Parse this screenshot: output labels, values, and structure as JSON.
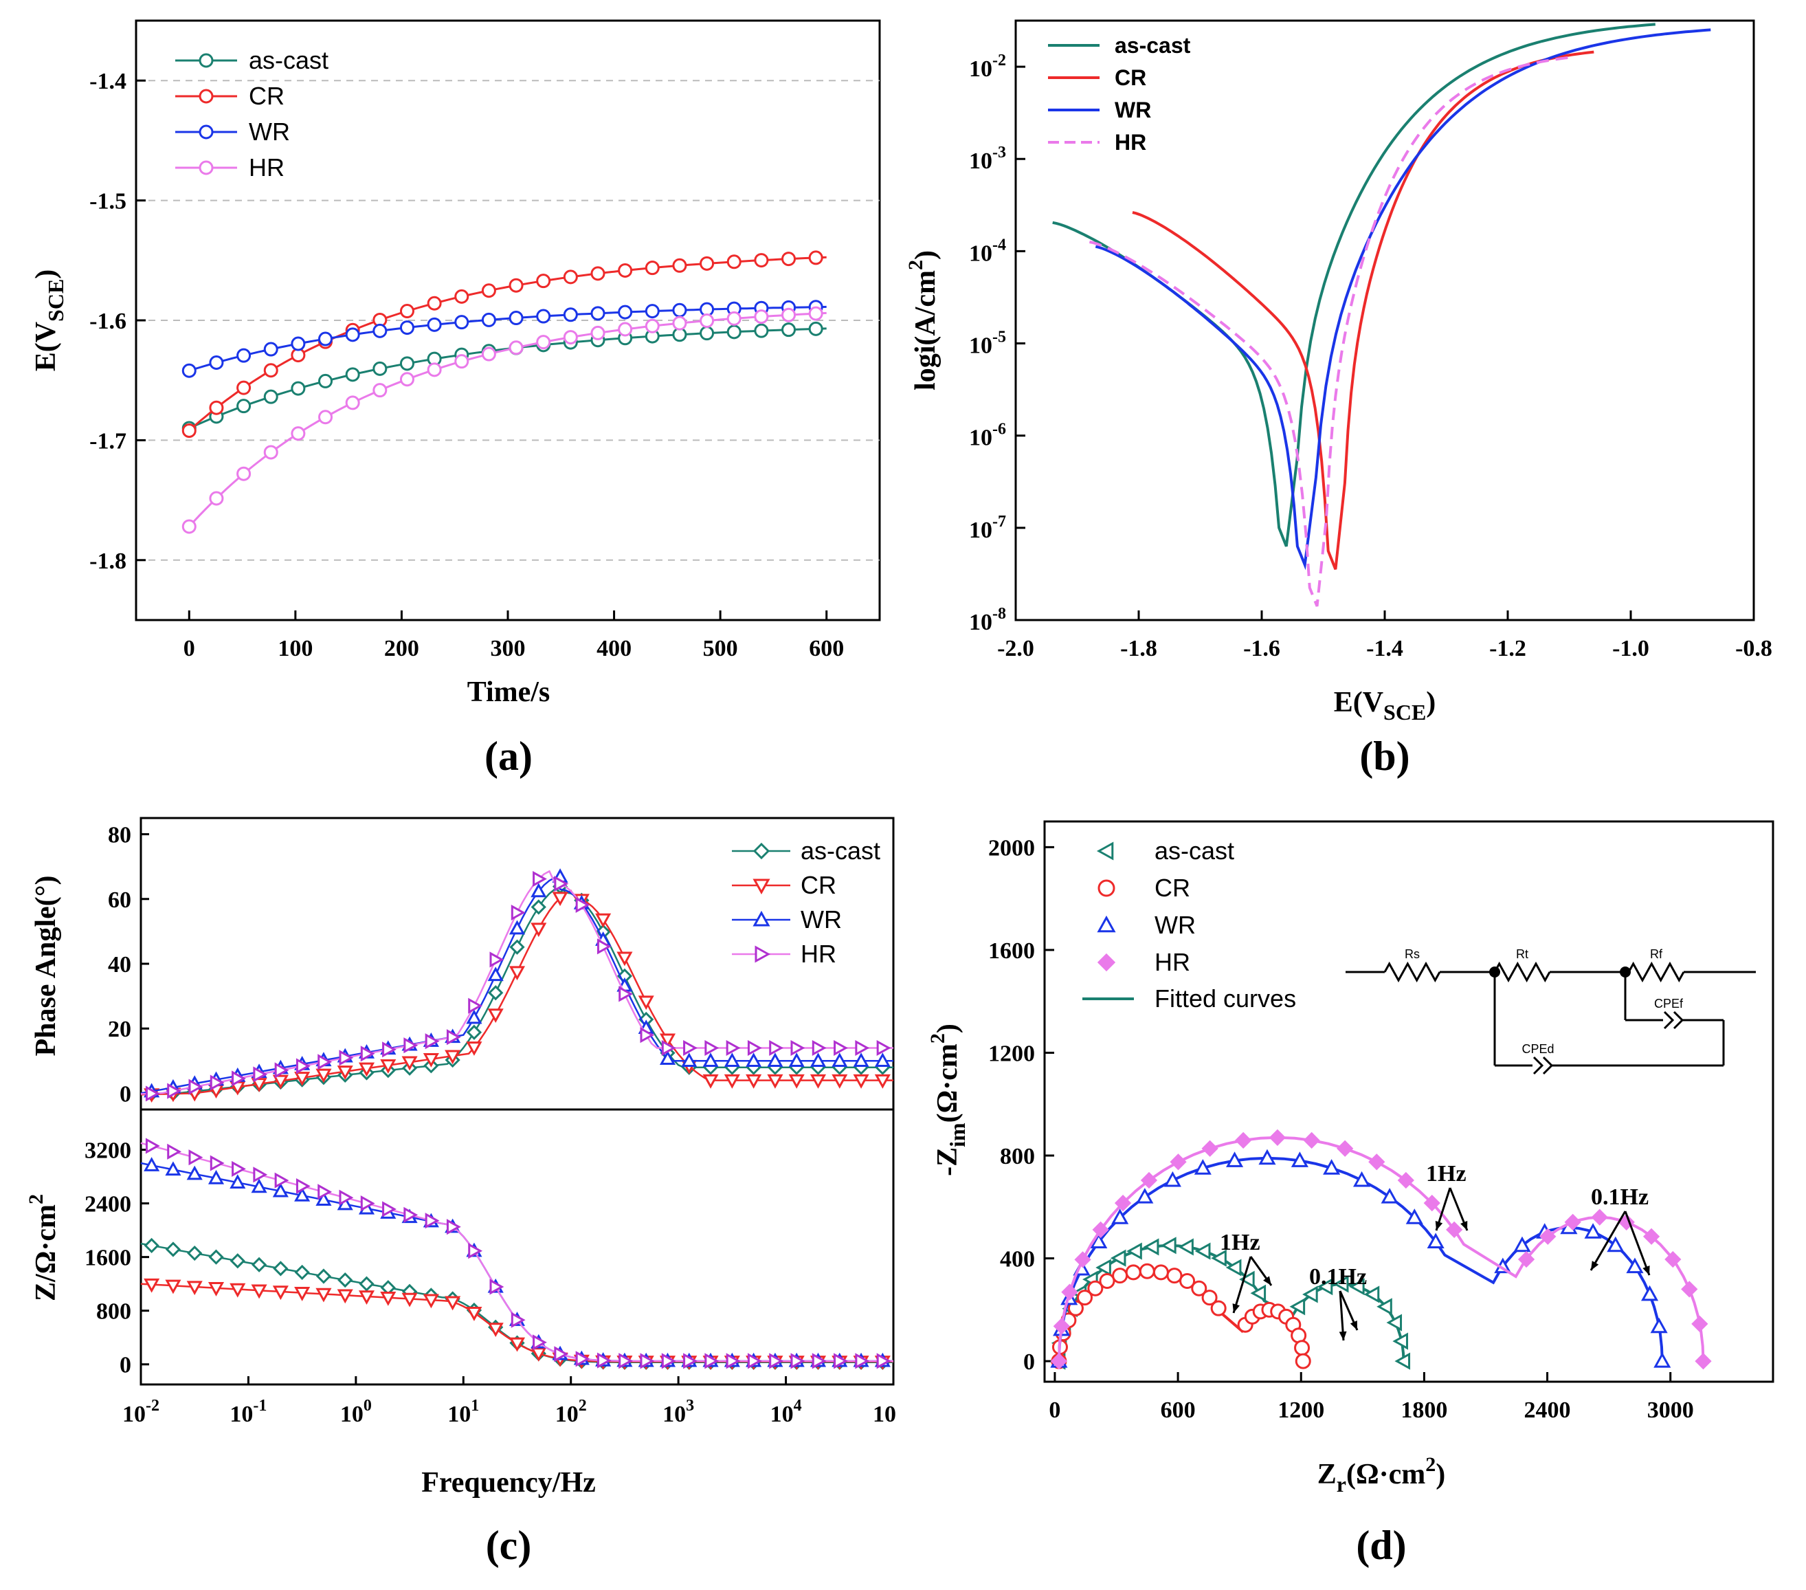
{
  "colors": {
    "ascast": "#1a8070",
    "cr": "#ee2a2a",
    "wr": "#1a35e8",
    "hr": "#ea7aea",
    "hrc": "#b030d0"
  },
  "chart_data": [
    {
      "id": "a",
      "type": "line",
      "panel_label": "(a)",
      "xlabel": "Time/s",
      "ylabel": "E(V",
      "ylabel_sub": "SCE",
      "ylabel_end": ")",
      "xlim": [
        -50,
        650
      ],
      "ylim": [
        -1.85,
        -1.35
      ],
      "xticks": [
        0,
        100,
        200,
        300,
        400,
        500,
        600
      ],
      "xtick_labels": [
        "0",
        "100",
        "200",
        "300",
        "400",
        "500",
        "600"
      ],
      "yticks": [
        -1.4,
        -1.5,
        -1.6,
        -1.7,
        -1.8
      ],
      "ytick_labels": [
        "-1.4",
        "-1.5",
        "-1.6",
        "-1.7",
        "-1.8"
      ],
      "grid": "dashed horizontal",
      "legend": "top-left",
      "series": [
        {
          "name": "as-cast",
          "start": -1.69,
          "end": -1.601,
          "tau": 220
        },
        {
          "name": "CR",
          "start": -1.692,
          "end": -1.541,
          "tau": 190
        },
        {
          "name": "WR",
          "start": -1.642,
          "end": -1.586,
          "tau": 200
        },
        {
          "name": "HR",
          "start": -1.772,
          "end": -1.586,
          "tau": 190
        }
      ]
    },
    {
      "id": "b",
      "type": "line",
      "panel_label": "(b)",
      "xlabel": "E(V",
      "xlabel_sub": "SCE",
      "xlabel_end": ")",
      "ylabel": "logi(A/cm",
      "ylabel_sup": "2",
      "ylabel_end": ")",
      "xlim": [
        -2.0,
        -0.8
      ],
      "ylim": [
        -8,
        -1.5
      ],
      "xticks": [
        -2.0,
        -1.8,
        -1.6,
        -1.4,
        -1.2,
        -1.0,
        -0.8
      ],
      "xtick_labels": [
        "-2.0",
        "-1.8",
        "-1.6",
        "-1.4",
        "-1.2",
        "-1.0",
        "-0.8"
      ],
      "yticks": [
        -2,
        -3,
        -4,
        -5,
        -6,
        -7,
        -8
      ],
      "ytick_base": "10",
      "ytick_exps": [
        "-2",
        "-3",
        "-4",
        "-5",
        "-6",
        "-7",
        "-8"
      ],
      "legend": "top-left",
      "series": [
        {
          "name": "as-cast",
          "x_start": -1.94,
          "ecorr": -1.56,
          "x_end": -0.96,
          "y_start": -3.69,
          "y_min": -7.2,
          "y_end": -1.54
        },
        {
          "name": "CR",
          "x_start": -1.81,
          "ecorr": -1.48,
          "x_end": -1.06,
          "y_start": -3.58,
          "y_min": -7.45,
          "y_end": -1.84
        },
        {
          "name": "WR",
          "x_start": -1.87,
          "ecorr": -1.53,
          "x_end": -0.87,
          "y_start": -3.95,
          "y_min": -7.4,
          "y_end": -1.6
        },
        {
          "name": "HR",
          "x_start": -1.88,
          "ecorr": -1.51,
          "x_end": -1.1,
          "y_start": -3.9,
          "y_min": -7.85,
          "y_end": -1.9
        }
      ]
    },
    {
      "id": "c",
      "type": "scatter",
      "panel_label": "(c)",
      "xlabel": "Frequency/Hz",
      "xlim": [
        -2,
        5
      ],
      "xticks": [
        -2,
        -1,
        0,
        1,
        2,
        3,
        4,
        5
      ],
      "xtick_base": "10",
      "xtick_exps": [
        "-2",
        "-1",
        "0",
        "1",
        "2",
        "3",
        "4",
        ""
      ],
      "xtick_last": "10",
      "top": {
        "ylabel": "Phase Angle(°)",
        "ylim": [
          -5,
          85
        ],
        "yticks": [
          0,
          20,
          40,
          60,
          80
        ],
        "ytick_labels": [
          "0",
          "20",
          "40",
          "60",
          "80"
        ]
      },
      "bottom": {
        "ylabel": "Z/Ω·cm",
        "ylabel_sup": "2",
        "ylim": [
          -300,
          3800
        ],
        "yticks": [
          0,
          800,
          1600,
          2400,
          3200
        ],
        "ytick_labels": [
          "0",
          "800",
          "1600",
          "2400",
          "3200"
        ]
      },
      "legend": "top-right",
      "series": [
        {
          "name": "as-cast",
          "phase_peak": 62,
          "phase_peak_logf": 1.95,
          "phase_low": -1,
          "phase_mid": 8,
          "phase_high": 8,
          "z_low": 1800,
          "z_mid": 1000,
          "z_high": 30
        },
        {
          "name": "CR",
          "phase_peak": 60,
          "phase_peak_logf": 2.05,
          "phase_low": -2,
          "phase_mid": 10,
          "phase_high": 4,
          "z_low": 1200,
          "z_mid": 950,
          "z_high": 40
        },
        {
          "name": "WR",
          "phase_peak": 63,
          "phase_peak_logf": 1.9,
          "phase_low": 0,
          "phase_mid": 15,
          "phase_high": 10,
          "z_low": 3000,
          "z_mid": 2100,
          "z_high": 50
        },
        {
          "name": "HR",
          "phase_peak": 65,
          "phase_peak_logf": 1.85,
          "phase_low": -1,
          "phase_mid": 15,
          "phase_high": 14,
          "z_low": 3300,
          "z_mid": 2100,
          "z_high": 50
        }
      ]
    },
    {
      "id": "d",
      "type": "scatter",
      "panel_label": "(d)",
      "xlabel": "Z",
      "xlabel_sub": "r",
      "xlabel_end": "(Ω·cm",
      "xlabel_sup": "2",
      "xlabel_close": ")",
      "ylabel": "-Z",
      "ylabel_sub": "im",
      "ylabel_end": "(Ω·cm",
      "ylabel_sup": "2",
      "ylabel_close": ")",
      "xlim": [
        -50,
        3500
      ],
      "ylim": [
        -80,
        2100
      ],
      "xticks": [
        0,
        600,
        1200,
        1800,
        2400,
        3000
      ],
      "xtick_labels": [
        "0",
        "600",
        "1200",
        "1800",
        "2400",
        "3000"
      ],
      "yticks": [
        0,
        400,
        800,
        1200,
        1600,
        2000
      ],
      "ytick_labels": [
        "0",
        "400",
        "800",
        "1200",
        "1600",
        "2000"
      ],
      "legend": "top-left",
      "series": [
        {
          "name": "as-cast",
          "arc1": [
            20,
            1100,
            450
          ],
          "arc2": [
            1100,
            1700,
            300
          ]
        },
        {
          "name": "CR",
          "arc1": [
            20,
            880,
            350
          ],
          "arc2": [
            880,
            1210,
            200
          ]
        },
        {
          "name": "WR",
          "arc1": [
            20,
            2050,
            790
          ],
          "arc2": [
            2050,
            2960,
            520
          ]
        },
        {
          "name": "HR",
          "arc1": [
            20,
            2150,
            870
          ],
          "arc2": [
            2150,
            3160,
            560
          ]
        }
      ],
      "fitted_label": "Fitted curves",
      "annotations": [
        "1Hz",
        "0.1Hz",
        "1Hz",
        "0.1Hz"
      ],
      "circuit": {
        "labels": [
          "Rs",
          "Rt",
          "Rf",
          "CPEf",
          "CPEd"
        ]
      }
    }
  ]
}
